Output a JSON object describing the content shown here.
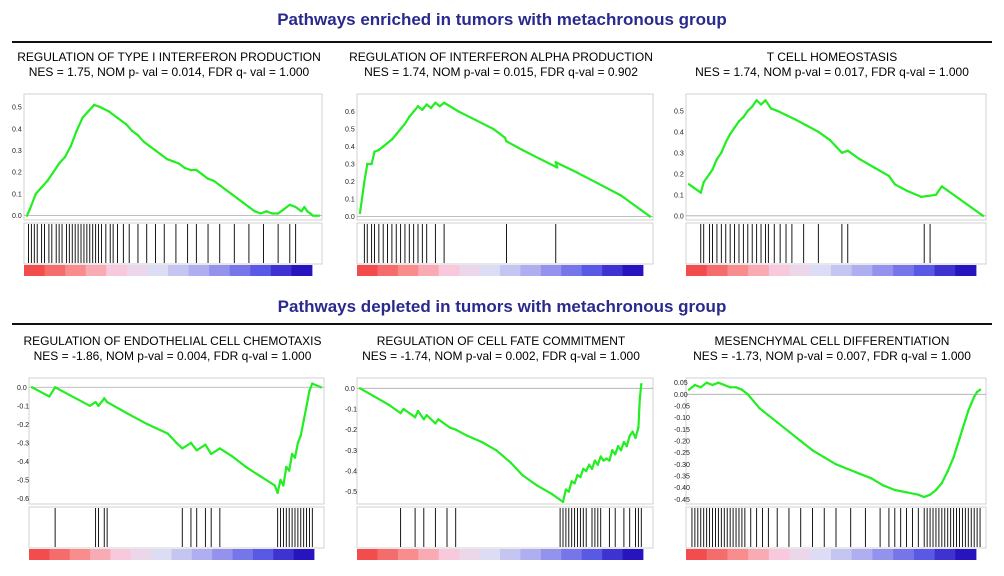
{
  "sections": [
    {
      "title": "Pathways enriched in tumors with metachronous group",
      "color": "#2a2a8c"
    },
    {
      "title": "Pathways depleted in tumors with metachronous group",
      "color": "#2a2a8c"
    }
  ],
  "colors": {
    "curve": "#22ee22",
    "hit": "#000000"
  },
  "chart_data": [
    {
      "type": "line",
      "title": "REGULATION OF TYPE I INTERFERON PRODUCTION",
      "subtitle": "NES = 1.75, NOM p- val = 0.014, FDR q- val = 1.000",
      "ylim": [
        -0.02,
        0.56
      ],
      "yticks": [
        0.0,
        0.1,
        0.2,
        0.3,
        0.4,
        0.5
      ],
      "tick_decimals": 1,
      "x": [
        0,
        1,
        3,
        5,
        7,
        9,
        11,
        13,
        15,
        17,
        19,
        21,
        23,
        25,
        28,
        31,
        34,
        36,
        38,
        40,
        42,
        44,
        46,
        48,
        50,
        52,
        54,
        56,
        58,
        60,
        62,
        64,
        66,
        68,
        70,
        72,
        74,
        76,
        78,
        80,
        82,
        84,
        86,
        88,
        90,
        92,
        94,
        95,
        96,
        97,
        98,
        99,
        100
      ],
      "y": [
        0.0,
        0.03,
        0.1,
        0.13,
        0.16,
        0.2,
        0.24,
        0.27,
        0.32,
        0.39,
        0.45,
        0.48,
        0.51,
        0.5,
        0.48,
        0.45,
        0.42,
        0.39,
        0.37,
        0.34,
        0.32,
        0.3,
        0.28,
        0.26,
        0.25,
        0.24,
        0.22,
        0.21,
        0.21,
        0.19,
        0.17,
        0.16,
        0.14,
        0.12,
        0.1,
        0.08,
        0.06,
        0.04,
        0.02,
        0.01,
        0.02,
        0.01,
        0.01,
        0.03,
        0.05,
        0.04,
        0.02,
        0.04,
        0.02,
        0.01,
        0.0,
        0.0,
        0.0
      ],
      "hits": [
        0.5,
        1.5,
        2.5,
        3.5,
        5,
        6,
        7.5,
        8.5,
        10,
        11,
        12,
        13.5,
        14.5,
        15.5,
        16.5,
        17.5,
        18.5,
        19.5,
        20.5,
        21.5,
        22.5,
        23.5,
        24.5,
        25.5,
        27,
        28.5,
        29.5,
        31,
        33,
        35,
        38,
        41,
        44,
        47,
        51,
        55,
        58,
        62,
        66,
        71,
        76,
        81,
        86,
        90,
        92
      ]
    },
    {
      "type": "line",
      "title": "REGULATION OF INTERFERON ALPHA PRODUCTION",
      "subtitle": "NES = 1.74, NOM p-val = 0.015, FDR q-val = 0.902",
      "ylim": [
        -0.02,
        0.7
      ],
      "yticks": [
        0.0,
        0.1,
        0.2,
        0.3,
        0.4,
        0.5,
        0.6
      ],
      "tick_decimals": 1,
      "x": [
        0,
        1.5,
        2.5,
        4,
        5,
        6.5,
        8,
        9.5,
        11,
        12.5,
        14,
        15.5,
        17,
        18.5,
        20,
        21.5,
        23,
        24.5,
        26,
        27.5,
        29,
        34,
        40,
        46,
        50,
        50.5,
        56,
        62,
        68,
        67.5,
        75,
        82,
        90,
        100
      ],
      "y": [
        0.02,
        0.2,
        0.3,
        0.3,
        0.37,
        0.38,
        0.4,
        0.42,
        0.44,
        0.47,
        0.5,
        0.53,
        0.57,
        0.6,
        0.63,
        0.61,
        0.64,
        0.62,
        0.65,
        0.63,
        0.65,
        0.6,
        0.55,
        0.5,
        0.45,
        0.43,
        0.38,
        0.33,
        0.28,
        0.31,
        0.25,
        0.19,
        0.12,
        0.0
      ],
      "hits": [
        1.5,
        2.5,
        4,
        5,
        6.5,
        8,
        9.5,
        11,
        12.5,
        14,
        15.5,
        17,
        18.5,
        20,
        21.5,
        23,
        26,
        29,
        50.5,
        67.5
      ]
    },
    {
      "type": "line",
      "title": "T CELL HOMEOSTASIS",
      "subtitle": "NES = 1.74, NOM p-val = 0.017, FDR q-val = 1.000",
      "ylim": [
        -0.02,
        0.58
      ],
      "yticks": [
        0.0,
        0.1,
        0.2,
        0.3,
        0.4,
        0.5
      ],
      "tick_decimals": 1,
      "x": [
        0,
        4,
        5,
        7,
        8,
        9.5,
        11,
        12.5,
        14,
        15.5,
        17,
        18.5,
        20,
        21.5,
        23,
        24.5,
        26,
        28,
        30,
        33,
        36,
        40,
        44,
        48,
        50,
        52,
        54,
        58,
        63,
        68,
        70,
        74,
        79,
        84,
        86,
        88,
        92,
        96,
        100
      ],
      "y": [
        0.15,
        0.11,
        0.16,
        0.2,
        0.22,
        0.27,
        0.3,
        0.35,
        0.39,
        0.42,
        0.45,
        0.47,
        0.5,
        0.52,
        0.55,
        0.53,
        0.55,
        0.51,
        0.5,
        0.48,
        0.46,
        0.43,
        0.4,
        0.36,
        0.33,
        0.3,
        0.31,
        0.27,
        0.23,
        0.19,
        0.15,
        0.12,
        0.09,
        0.1,
        0.14,
        0.12,
        0.08,
        0.04,
        0.0
      ],
      "hits": [
        4,
        5,
        7,
        8,
        9.5,
        11,
        12.5,
        14,
        15.5,
        17,
        18.5,
        20,
        21.5,
        23,
        24.5,
        26,
        27,
        29,
        31,
        33,
        35,
        39,
        44,
        52,
        54,
        80,
        82
      ]
    },
    {
      "type": "line",
      "title": "REGULATION OF ENDOTHELIAL CELL CHEMOTAXIS",
      "subtitle": "NES = -1.86, NOM p-val = 0.004, FDR q-val = 1.000",
      "ylim": [
        -0.63,
        0.05
      ],
      "yticks": [
        0.0,
        -0.1,
        -0.2,
        -0.3,
        -0.4,
        -0.5,
        -0.6
      ],
      "tick_decimals": 1,
      "x": [
        0,
        6,
        8,
        20,
        22,
        23,
        25,
        26,
        34,
        40,
        47,
        50,
        52,
        55,
        57,
        60,
        62,
        65,
        69,
        74,
        79,
        84,
        85,
        86,
        87,
        88,
        89,
        90,
        91,
        92,
        93,
        94,
        95,
        96,
        97,
        100
      ],
      "y": [
        0.0,
        -0.05,
        0.0,
        -0.1,
        -0.08,
        -0.1,
        -0.06,
        -0.08,
        -0.15,
        -0.2,
        -0.25,
        -0.3,
        -0.33,
        -0.3,
        -0.34,
        -0.31,
        -0.36,
        -0.33,
        -0.37,
        -0.43,
        -0.48,
        -0.53,
        -0.57,
        -0.5,
        -0.53,
        -0.43,
        -0.45,
        -0.36,
        -0.38,
        -0.3,
        -0.26,
        -0.18,
        -0.1,
        -0.02,
        0.02,
        0.0
      ],
      "hits": [
        8,
        22,
        23,
        25,
        26,
        52,
        55,
        57,
        60,
        62,
        65,
        85,
        86,
        87,
        88,
        89,
        90,
        91,
        92,
        93,
        94,
        95,
        96,
        97
      ]
    },
    {
      "type": "line",
      "title": "REGULATION OF CELL FATE COMMITMENT",
      "subtitle": "NES = -1.74, NOM p-val = 0.002, FDR q-val = 1.000",
      "ylim": [
        -0.56,
        0.05
      ],
      "yticks": [
        0.0,
        -0.1,
        -0.2,
        -0.3,
        -0.4,
        -0.5
      ],
      "tick_decimals": 1,
      "x": [
        0,
        10,
        14,
        15,
        19,
        20,
        22,
        23,
        26,
        27,
        31,
        33,
        37,
        42,
        47,
        52,
        56,
        61,
        66,
        70,
        71,
        72,
        73,
        74,
        75,
        76,
        77,
        78,
        79,
        80,
        81,
        82,
        83,
        84,
        85,
        86,
        87,
        88,
        89,
        90,
        91,
        92,
        93,
        94,
        95,
        96,
        96.5,
        97
      ],
      "y": [
        0.0,
        -0.08,
        -0.12,
        -0.1,
        -0.14,
        -0.11,
        -0.15,
        -0.13,
        -0.17,
        -0.15,
        -0.19,
        -0.2,
        -0.23,
        -0.26,
        -0.3,
        -0.36,
        -0.42,
        -0.47,
        -0.51,
        -0.55,
        -0.49,
        -0.5,
        -0.45,
        -0.46,
        -0.42,
        -0.43,
        -0.39,
        -0.4,
        -0.37,
        -0.39,
        -0.35,
        -0.37,
        -0.33,
        -0.35,
        -0.34,
        -0.35,
        -0.3,
        -0.32,
        -0.28,
        -0.3,
        -0.26,
        -0.28,
        -0.23,
        -0.21,
        -0.24,
        -0.19,
        -0.05,
        0.02
      ],
      "hits": [
        14,
        19,
        22,
        26,
        30,
        33,
        69,
        70,
        71,
        72,
        73,
        74,
        75,
        76,
        77,
        78,
        80,
        81,
        82,
        83,
        86,
        88,
        91,
        93,
        95,
        96,
        97
      ]
    },
    {
      "type": "line",
      "title": "MESENCHYMAL CELL DIFFERENTIATION",
      "subtitle": "NES = -1.73, NOM p-val = 0.007, FDR q-val = 1.000",
      "ylim": [
        -0.47,
        0.07
      ],
      "yticks": [
        0.05,
        0.0,
        -0.05,
        -0.1,
        -0.15,
        -0.2,
        -0.25,
        -0.3,
        -0.35,
        -0.4,
        -0.45
      ],
      "tick_decimals": 2,
      "x": [
        0,
        2,
        4,
        6,
        8,
        10,
        12,
        14,
        16,
        18,
        20,
        22,
        24,
        27,
        30,
        34,
        38,
        42,
        46,
        50,
        54,
        58,
        62,
        66,
        70,
        74,
        78,
        80,
        82,
        84,
        86,
        88,
        90,
        91,
        92,
        93,
        94,
        95,
        96,
        97,
        98,
        99
      ],
      "y": [
        0.02,
        0.04,
        0.03,
        0.05,
        0.04,
        0.05,
        0.04,
        0.03,
        0.03,
        0.02,
        0.0,
        -0.03,
        -0.06,
        -0.09,
        -0.12,
        -0.16,
        -0.2,
        -0.24,
        -0.27,
        -0.3,
        -0.32,
        -0.34,
        -0.36,
        -0.39,
        -0.41,
        -0.42,
        -0.43,
        -0.44,
        -0.43,
        -0.41,
        -0.38,
        -0.33,
        -0.27,
        -0.23,
        -0.19,
        -0.15,
        -0.11,
        -0.07,
        -0.04,
        -0.01,
        0.01,
        0.02
      ],
      "hits": [
        1,
        2,
        3,
        4,
        5,
        6,
        7,
        8,
        9,
        10,
        11,
        12,
        13,
        14,
        15,
        16,
        17,
        18,
        19,
        21,
        23,
        25,
        27,
        30,
        34,
        38,
        42,
        46,
        50,
        55,
        60,
        65,
        68,
        70,
        72,
        74,
        76,
        78,
        80,
        81,
        82,
        83,
        84,
        85,
        86,
        87,
        88,
        89,
        90,
        91,
        92,
        93,
        94,
        95,
        96,
        97,
        98,
        99
      ]
    }
  ]
}
